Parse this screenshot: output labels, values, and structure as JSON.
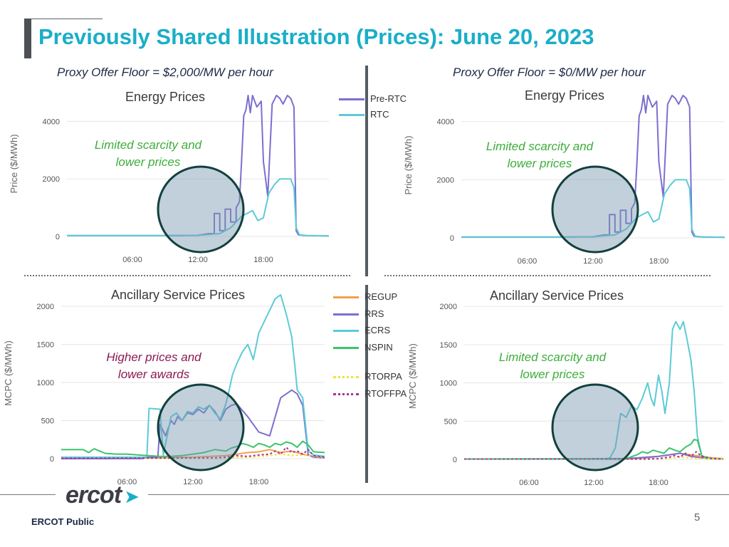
{
  "slide": {
    "title": "Previously Shared Illustration (Prices): June 20, 2023",
    "proxy_left": "Proxy Offer Floor = $2,000/MW per hour",
    "proxy_right": "Proxy Offer Floor = $0/MW per hour",
    "footer": "ERCOT Public",
    "page_number": "5",
    "logo_text": "ercot"
  },
  "legends": {
    "energy": [
      {
        "name": "Pre-RTC",
        "color": "#7b6fd0",
        "dash": false
      },
      {
        "name": "RTC",
        "color": "#5ccbd6",
        "dash": false
      }
    ],
    "ancillary": [
      {
        "name": "REGUP",
        "color": "#f5a04a",
        "dash": false
      },
      {
        "name": "RRS",
        "color": "#7b6fd0",
        "dash": false
      },
      {
        "name": "ECRS",
        "color": "#5ccbd6",
        "dash": false
      },
      {
        "name": "NSPIN",
        "color": "#3cc46a",
        "dash": false
      },
      {
        "name": "RTORPA",
        "color": "#f2e03c",
        "dash": true
      },
      {
        "name": "RTOFFPA",
        "color": "#a8329a",
        "dash": true
      }
    ]
  },
  "chart_data": [
    {
      "type": "line",
      "title": "Energy Prices",
      "ylabel": "Price ($/MWh)",
      "xlabel": "",
      "ylim": [
        0,
        4900
      ],
      "xlim": [
        0,
        24
      ],
      "yticks": [
        0,
        2000,
        4000
      ],
      "xticks": [
        "06:00",
        "12:00",
        "18:00"
      ],
      "annotation": "Limited scarcity and\nlower prices",
      "annotation_color": "#3cae3a",
      "series": [
        {
          "name": "Pre-RTC",
          "color": "#7b6fd0",
          "x": [
            0,
            9,
            12,
            13,
            13.5,
            13.5,
            14,
            14,
            14.5,
            14.5,
            15,
            15,
            15.5,
            15.5,
            15.8,
            16,
            16.2,
            16.4,
            16.6,
            16.8,
            17,
            17.4,
            17.8,
            18,
            18.2,
            18.4,
            18.8,
            19.2,
            19.5,
            19.8,
            20.2,
            20.5,
            20.8,
            21,
            21.2,
            21.6,
            22,
            24
          ],
          "y": [
            30,
            30,
            40,
            100,
            100,
            800,
            800,
            200,
            200,
            950,
            950,
            500,
            500,
            1000,
            1200,
            2600,
            4200,
            4400,
            4900,
            4300,
            4900,
            4500,
            4700,
            2600,
            2000,
            1400,
            4600,
            4900,
            4800,
            4600,
            4900,
            4800,
            4500,
            200,
            60,
            40,
            30,
            20
          ]
        },
        {
          "name": "RTC",
          "color": "#5ccbd6",
          "x": [
            0,
            9,
            12,
            14,
            15,
            16,
            17,
            17.5,
            18,
            18.5,
            19,
            19.5,
            20,
            20.5,
            20.8,
            21,
            21.3,
            22,
            24
          ],
          "y": [
            30,
            30,
            40,
            100,
            300,
            700,
            900,
            550,
            650,
            1500,
            1800,
            2000,
            2000,
            2000,
            1700,
            300,
            60,
            30,
            20
          ]
        }
      ]
    },
    {
      "type": "line",
      "title": "Energy Prices",
      "ylabel": "Price ($/MWh)",
      "xlabel": "",
      "ylim": [
        0,
        4900
      ],
      "xlim": [
        0,
        24
      ],
      "yticks": [
        0,
        2000,
        4000
      ],
      "xticks": [
        "06:00",
        "12:00",
        "18:00"
      ],
      "annotation": "Limited scarcity and\nlower prices",
      "annotation_color": "#3cae3a",
      "series": [
        {
          "name": "Pre-RTC",
          "color": "#7b6fd0",
          "x": [
            0,
            9,
            12,
            13,
            13.5,
            13.5,
            14,
            14,
            14.5,
            14.5,
            15,
            15,
            15.5,
            15.5,
            15.8,
            16,
            16.2,
            16.4,
            16.6,
            16.8,
            17,
            17.4,
            17.8,
            18,
            18.2,
            18.4,
            18.8,
            19.2,
            19.5,
            19.8,
            20.2,
            20.5,
            20.8,
            21,
            21.2,
            21.6,
            22,
            24
          ],
          "y": [
            30,
            30,
            40,
            100,
            100,
            800,
            800,
            200,
            200,
            950,
            950,
            500,
            500,
            1000,
            1200,
            2600,
            4200,
            4400,
            4900,
            4300,
            4900,
            4500,
            4700,
            2600,
            2000,
            1400,
            4600,
            4900,
            4800,
            4600,
            4900,
            4800,
            4500,
            200,
            60,
            40,
            30,
            20
          ]
        },
        {
          "name": "RTC",
          "color": "#5ccbd6",
          "x": [
            0,
            9,
            12,
            14,
            15,
            16,
            17,
            17.5,
            18,
            18.5,
            19,
            19.5,
            20,
            20.5,
            20.8,
            21,
            21.3,
            22,
            24
          ],
          "y": [
            30,
            30,
            40,
            100,
            300,
            700,
            900,
            550,
            650,
            1500,
            1800,
            2000,
            2000,
            2000,
            1700,
            300,
            60,
            30,
            20
          ]
        }
      ]
    },
    {
      "type": "line",
      "title": "Ancillary Service Prices",
      "ylabel": "MCPC ($/MWh)",
      "xlabel": "",
      "ylim": [
        0,
        2150
      ],
      "xlim": [
        0,
        24
      ],
      "yticks": [
        0,
        500,
        1000,
        1500,
        2000
      ],
      "xticks": [
        "06:00",
        "12:00",
        "18:00"
      ],
      "annotation": "Higher prices and\nlower awards",
      "annotation_color": "#8b1a55",
      "series": [
        {
          "name": "REGUP",
          "color": "#f5a04a",
          "x": [
            0,
            8,
            12,
            15,
            16,
            17,
            18,
            19,
            20,
            21,
            22,
            23,
            24
          ],
          "y": [
            10,
            10,
            20,
            40,
            60,
            80,
            90,
            120,
            80,
            100,
            60,
            30,
            20
          ]
        },
        {
          "name": "RRS",
          "color": "#7b6fd0",
          "x": [
            0,
            7.5,
            7.6,
            8.8,
            9,
            9.5,
            10,
            10.3,
            10.6,
            11,
            11.5,
            12,
            12.5,
            13,
            13.5,
            14,
            14.5,
            15,
            15.5,
            16,
            17,
            18,
            19,
            20,
            21,
            21.5,
            22,
            22.5,
            23,
            24
          ],
          "y": [
            0,
            0,
            20,
            20,
            450,
            300,
            500,
            450,
            550,
            500,
            600,
            580,
            650,
            600,
            700,
            620,
            500,
            650,
            700,
            720,
            550,
            350,
            300,
            800,
            900,
            850,
            700,
            50,
            20,
            10
          ]
        },
        {
          "name": "ECRS",
          "color": "#5ccbd6",
          "x": [
            0,
            6.5,
            6.6,
            7.8,
            8,
            9,
            9.3,
            10,
            10.5,
            11,
            11.5,
            12,
            12.5,
            13,
            13.5,
            14,
            14.5,
            15,
            15.3,
            15.6,
            16,
            16.5,
            17,
            17.5,
            18,
            18.5,
            19,
            19.5,
            20,
            20.5,
            21,
            21.3,
            21.5,
            22,
            22.5,
            23,
            24
          ],
          "y": [
            20,
            20,
            20,
            20,
            660,
            650,
            50,
            550,
            600,
            500,
            620,
            600,
            680,
            650,
            700,
            600,
            520,
            720,
            900,
            1100,
            1250,
            1400,
            1500,
            1300,
            1650,
            1800,
            1950,
            2100,
            2200,
            1900,
            1600,
            1200,
            900,
            800,
            100,
            50,
            30
          ]
        },
        {
          "name": "NSPIN",
          "color": "#3cc46a",
          "x": [
            0,
            2,
            2.5,
            3,
            3.5,
            4,
            5,
            6,
            7,
            8,
            9,
            10,
            11,
            12,
            13,
            14,
            15,
            15.5,
            16,
            16.5,
            17,
            17.5,
            18,
            18.5,
            19,
            19.5,
            20,
            20.5,
            21,
            21.5,
            22,
            22.5,
            23,
            24
          ],
          "y": [
            120,
            120,
            80,
            130,
            100,
            70,
            60,
            60,
            50,
            40,
            30,
            30,
            40,
            60,
            80,
            120,
            100,
            140,
            160,
            200,
            180,
            150,
            200,
            180,
            150,
            200,
            180,
            220,
            200,
            150,
            230,
            180,
            90,
            80
          ]
        },
        {
          "name": "RTORPA",
          "color": "#f2e03c",
          "x": [
            0,
            15,
            17,
            18,
            19,
            20,
            21,
            22,
            23,
            24
          ],
          "y": [
            5,
            5,
            20,
            30,
            40,
            60,
            40,
            50,
            30,
            10
          ]
        },
        {
          "name": "RTOFFPA",
          "color": "#a8329a",
          "x": [
            0,
            14,
            15,
            16,
            17,
            18,
            19,
            19.5,
            20,
            20.5,
            21,
            21.5,
            22,
            22.5,
            23,
            24
          ],
          "y": [
            5,
            10,
            20,
            40,
            30,
            50,
            60,
            100,
            60,
            150,
            80,
            100,
            60,
            120,
            40,
            20
          ]
        }
      ]
    },
    {
      "type": "line",
      "title": "Ancillary Service Prices",
      "ylabel": "MCPC ($/MWh)",
      "xlabel": "",
      "ylim": [
        0,
        2150
      ],
      "xlim": [
        0,
        24
      ],
      "yticks": [
        0,
        500,
        1000,
        1500,
        2000
      ],
      "xticks": [
        "06:00",
        "12:00",
        "18:00"
      ],
      "annotation": "Limited scarcity and\nlower prices",
      "annotation_color": "#3cae3a",
      "series": [
        {
          "name": "REGUP",
          "color": "#f5a04a",
          "x": [
            0,
            15,
            17,
            18,
            19,
            20,
            21,
            22,
            23,
            24
          ],
          "y": [
            5,
            5,
            20,
            40,
            60,
            80,
            60,
            40,
            20,
            10
          ]
        },
        {
          "name": "RRS",
          "color": "#7b6fd0",
          "x": [
            0,
            14,
            15,
            16,
            17,
            18,
            19,
            20,
            20.5,
            21,
            21.5,
            22,
            23,
            24
          ],
          "y": [
            5,
            5,
            10,
            20,
            30,
            40,
            60,
            80,
            60,
            40,
            30,
            20,
            10,
            5
          ]
        },
        {
          "name": "ECRS",
          "color": "#5ccbd6",
          "x": [
            0,
            13,
            13.5,
            14,
            14.5,
            15,
            15.5,
            16,
            16.5,
            17,
            17.3,
            17.6,
            18,
            18.3,
            18.6,
            19,
            19.3,
            19.6,
            20,
            20.3,
            20.6,
            21,
            21.3,
            21.6,
            22,
            22.5,
            23,
            24
          ],
          "y": [
            5,
            5,
            20,
            150,
            600,
            550,
            700,
            650,
            800,
            1000,
            800,
            700,
            1100,
            900,
            600,
            1000,
            1700,
            1800,
            1700,
            1800,
            1600,
            1300,
            900,
            300,
            50,
            20,
            10,
            5
          ]
        },
        {
          "name": "NSPIN",
          "color": "#3cc46a",
          "x": [
            0,
            15,
            16,
            16.5,
            17,
            17.5,
            18,
            18.5,
            19,
            19.5,
            20,
            20.5,
            21,
            21.3,
            21.6,
            22,
            22.5,
            24
          ],
          "y": [
            5,
            10,
            60,
            100,
            80,
            120,
            100,
            80,
            150,
            120,
            100,
            160,
            200,
            260,
            250,
            50,
            10,
            5
          ]
        },
        {
          "name": "RTORPA",
          "color": "#f2e03c",
          "x": [
            0,
            17,
            19,
            20,
            21,
            22,
            24
          ],
          "y": [
            5,
            5,
            15,
            30,
            20,
            10,
            5
          ]
        },
        {
          "name": "RTOFFPA",
          "color": "#a8329a",
          "x": [
            0,
            17,
            18,
            19,
            19.5,
            20,
            20.5,
            21,
            21.5,
            22,
            23,
            24
          ],
          "y": [
            5,
            5,
            10,
            30,
            50,
            30,
            80,
            40,
            100,
            40,
            10,
            5
          ]
        }
      ]
    }
  ]
}
